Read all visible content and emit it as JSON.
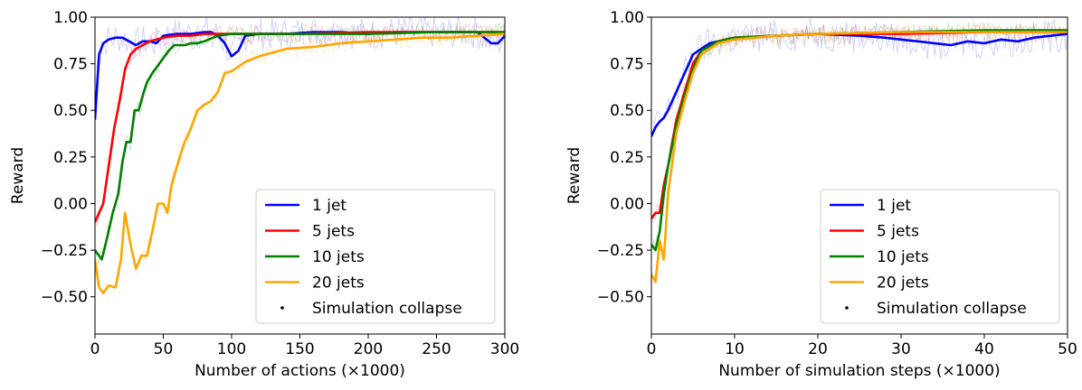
{
  "chart_data": [
    {
      "type": "line",
      "title": "",
      "xlabel": "Number of actions (×1000)",
      "ylabel": "Reward",
      "xlim": [
        0,
        300
      ],
      "ylim": [
        -0.7,
        1.0
      ],
      "xticks": [
        0,
        50,
        100,
        150,
        200,
        250,
        300
      ],
      "xtick_labels": [
        "0",
        "50",
        "100",
        "150",
        "200",
        "250",
        "300"
      ],
      "yticks": [
        -0.5,
        -0.25,
        0.0,
        0.25,
        0.5,
        0.75,
        1.0
      ],
      "ytick_labels": [
        "−0.50",
        "−0.25",
        "0.00",
        "0.25",
        "0.50",
        "0.75",
        "1.00"
      ],
      "grid": false,
      "legend_position": "lower-right",
      "series": [
        {
          "name": "1 jet",
          "color": "#0000ff",
          "x": [
            0,
            3,
            6,
            10,
            15,
            20,
            25,
            30,
            35,
            40,
            45,
            50,
            60,
            70,
            80,
            85,
            90,
            95,
            100,
            105,
            110,
            120,
            140,
            160,
            180,
            200,
            220,
            240,
            260,
            280,
            290,
            295,
            300
          ],
          "y": [
            0.45,
            0.8,
            0.86,
            0.88,
            0.89,
            0.89,
            0.87,
            0.85,
            0.87,
            0.87,
            0.86,
            0.9,
            0.91,
            0.91,
            0.92,
            0.92,
            0.9,
            0.86,
            0.79,
            0.82,
            0.9,
            0.91,
            0.91,
            0.92,
            0.92,
            0.91,
            0.92,
            0.92,
            0.92,
            0.92,
            0.86,
            0.86,
            0.9
          ]
        },
        {
          "name": "5 jets",
          "color": "#ff0000",
          "x": [
            0,
            3,
            6,
            10,
            14,
            18,
            22,
            26,
            30,
            35,
            40,
            50,
            60,
            70,
            80,
            100,
            150,
            200,
            250,
            300
          ],
          "y": [
            -0.1,
            -0.05,
            0.0,
            0.2,
            0.4,
            0.55,
            0.72,
            0.8,
            0.83,
            0.85,
            0.87,
            0.89,
            0.9,
            0.9,
            0.91,
            0.91,
            0.91,
            0.92,
            0.92,
            0.92
          ]
        },
        {
          "name": "10 jets",
          "color": "#008000",
          "x": [
            0,
            5,
            9,
            13,
            17,
            20,
            23,
            26,
            29,
            32,
            35,
            38,
            42,
            46,
            50,
            54,
            58,
            62,
            66,
            70,
            75,
            80,
            90,
            100,
            120,
            150,
            200,
            250,
            300
          ],
          "y": [
            -0.25,
            -0.3,
            -0.18,
            -0.05,
            0.05,
            0.22,
            0.33,
            0.33,
            0.5,
            0.5,
            0.58,
            0.65,
            0.7,
            0.74,
            0.78,
            0.82,
            0.85,
            0.85,
            0.85,
            0.86,
            0.86,
            0.87,
            0.9,
            0.91,
            0.91,
            0.91,
            0.91,
            0.92,
            0.92
          ]
        },
        {
          "name": "20 jets",
          "color": "#ffa500",
          "x": [
            0,
            3,
            6,
            10,
            15,
            19,
            22,
            26,
            30,
            34,
            38,
            42,
            46,
            50,
            53,
            56,
            60,
            65,
            70,
            75,
            80,
            85,
            90,
            95,
            100,
            110,
            120,
            140,
            160,
            180,
            200,
            220,
            240,
            260,
            280,
            300
          ],
          "y": [
            -0.3,
            -0.45,
            -0.48,
            -0.44,
            -0.45,
            -0.3,
            -0.05,
            -0.22,
            -0.35,
            -0.28,
            -0.28,
            -0.15,
            0.0,
            0.0,
            -0.05,
            0.1,
            0.2,
            0.32,
            0.4,
            0.5,
            0.53,
            0.55,
            0.6,
            0.7,
            0.71,
            0.76,
            0.79,
            0.83,
            0.84,
            0.86,
            0.87,
            0.88,
            0.89,
            0.89,
            0.9,
            0.91
          ]
        }
      ],
      "legend_extra": "Simulation collapse"
    },
    {
      "type": "line",
      "title": "",
      "xlabel": "Number of simulation steps (×1000)",
      "ylabel": "Reward",
      "xlim": [
        0,
        50
      ],
      "ylim": [
        -0.7,
        1.0
      ],
      "xticks": [
        0,
        10,
        20,
        30,
        40,
        50
      ],
      "xtick_labels": [
        "0",
        "10",
        "20",
        "30",
        "40",
        "50"
      ],
      "yticks": [
        -0.5,
        -0.25,
        0.0,
        0.25,
        0.5,
        0.75,
        1.0
      ],
      "ytick_labels": [
        "−0.50",
        "−0.25",
        "0.00",
        "0.25",
        "0.50",
        "0.75",
        "1.00"
      ],
      "grid": false,
      "legend_position": "lower-right",
      "series": [
        {
          "name": "1 jet",
          "color": "#0000ff",
          "x": [
            0,
            0.5,
            1,
            1.5,
            2,
            3,
            4,
            5,
            6,
            7,
            8,
            10,
            12,
            15,
            20,
            25,
            28,
            30,
            32,
            34,
            36,
            38,
            40,
            42,
            44,
            46,
            48,
            50
          ],
          "y": [
            0.36,
            0.41,
            0.44,
            0.46,
            0.5,
            0.6,
            0.7,
            0.8,
            0.83,
            0.86,
            0.87,
            0.88,
            0.89,
            0.9,
            0.91,
            0.9,
            0.89,
            0.88,
            0.87,
            0.86,
            0.85,
            0.87,
            0.86,
            0.88,
            0.87,
            0.89,
            0.9,
            0.91
          ]
        },
        {
          "name": "5 jets",
          "color": "#ff0000",
          "x": [
            0,
            0.5,
            1,
            1.5,
            2,
            3,
            4,
            5,
            6,
            8,
            10,
            15,
            20,
            30,
            40,
            50
          ],
          "y": [
            -0.08,
            -0.05,
            -0.05,
            0.1,
            0.2,
            0.45,
            0.6,
            0.75,
            0.82,
            0.87,
            0.89,
            0.9,
            0.91,
            0.91,
            0.92,
            0.92
          ]
        },
        {
          "name": "10 jets",
          "color": "#008000",
          "x": [
            0,
            0.5,
            1,
            1.5,
            2,
            3,
            4,
            5,
            6,
            8,
            10,
            15,
            20,
            30,
            40,
            50
          ],
          "y": [
            -0.22,
            -0.25,
            -0.15,
            0.05,
            0.2,
            0.42,
            0.58,
            0.72,
            0.82,
            0.87,
            0.89,
            0.9,
            0.91,
            0.92,
            0.93,
            0.93
          ]
        },
        {
          "name": "20 jets",
          "color": "#ffa500",
          "x": [
            0,
            0.5,
            1,
            1.5,
            2,
            3,
            4,
            5,
            6,
            8,
            10,
            15,
            20,
            30,
            40,
            50
          ],
          "y": [
            -0.38,
            -0.42,
            -0.2,
            -0.3,
            0.05,
            0.38,
            0.55,
            0.7,
            0.8,
            0.86,
            0.88,
            0.9,
            0.91,
            0.92,
            0.92,
            0.92
          ]
        }
      ],
      "legend_extra": "Simulation collapse"
    }
  ]
}
